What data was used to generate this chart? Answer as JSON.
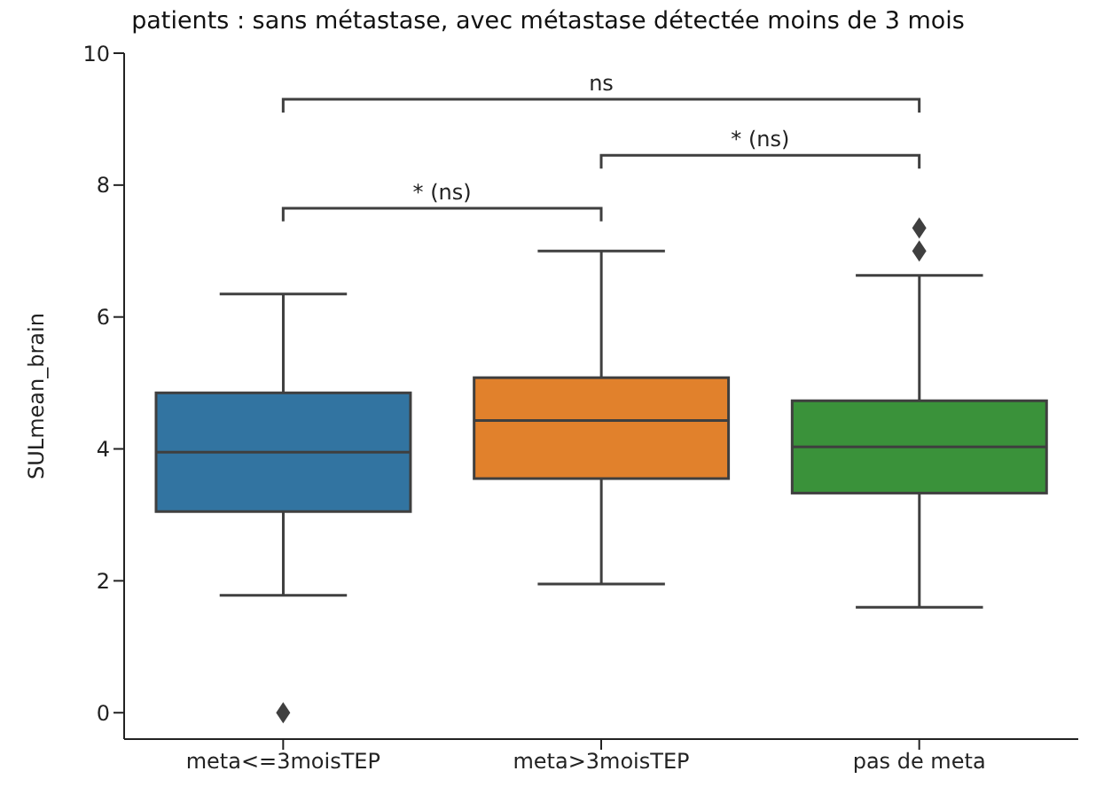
{
  "chart_data": {
    "type": "box",
    "title": "patients : sans métastase, avec métastase détectée moins de 3 mois",
    "ylabel": "SULmean_brain",
    "categories": [
      "meta<=3moisTEP",
      "meta>3moisTEP",
      "pas de meta"
    ],
    "colors": [
      "#3274a1",
      "#e1812c",
      "#3a923a"
    ],
    "boxes": [
      {
        "low": 1.78,
        "q1": 3.05,
        "median": 3.95,
        "q3": 4.85,
        "high": 6.35,
        "outliers": [
          0
        ]
      },
      {
        "low": 1.95,
        "q1": 3.55,
        "median": 4.43,
        "q3": 5.08,
        "high": 7.0
      },
      {
        "low": 1.6,
        "q1": 3.33,
        "median": 4.03,
        "q3": 4.73,
        "high": 6.63,
        "outliers": [
          7.0,
          7.35
        ]
      }
    ],
    "ylim": [
      -0.4,
      10
    ],
    "yticks": [
      0,
      2,
      4,
      6,
      8,
      10
    ],
    "grid": false,
    "legend": false,
    "annotations": [
      "* (ns)",
      "* (ns)",
      "ns"
    ]
  }
}
